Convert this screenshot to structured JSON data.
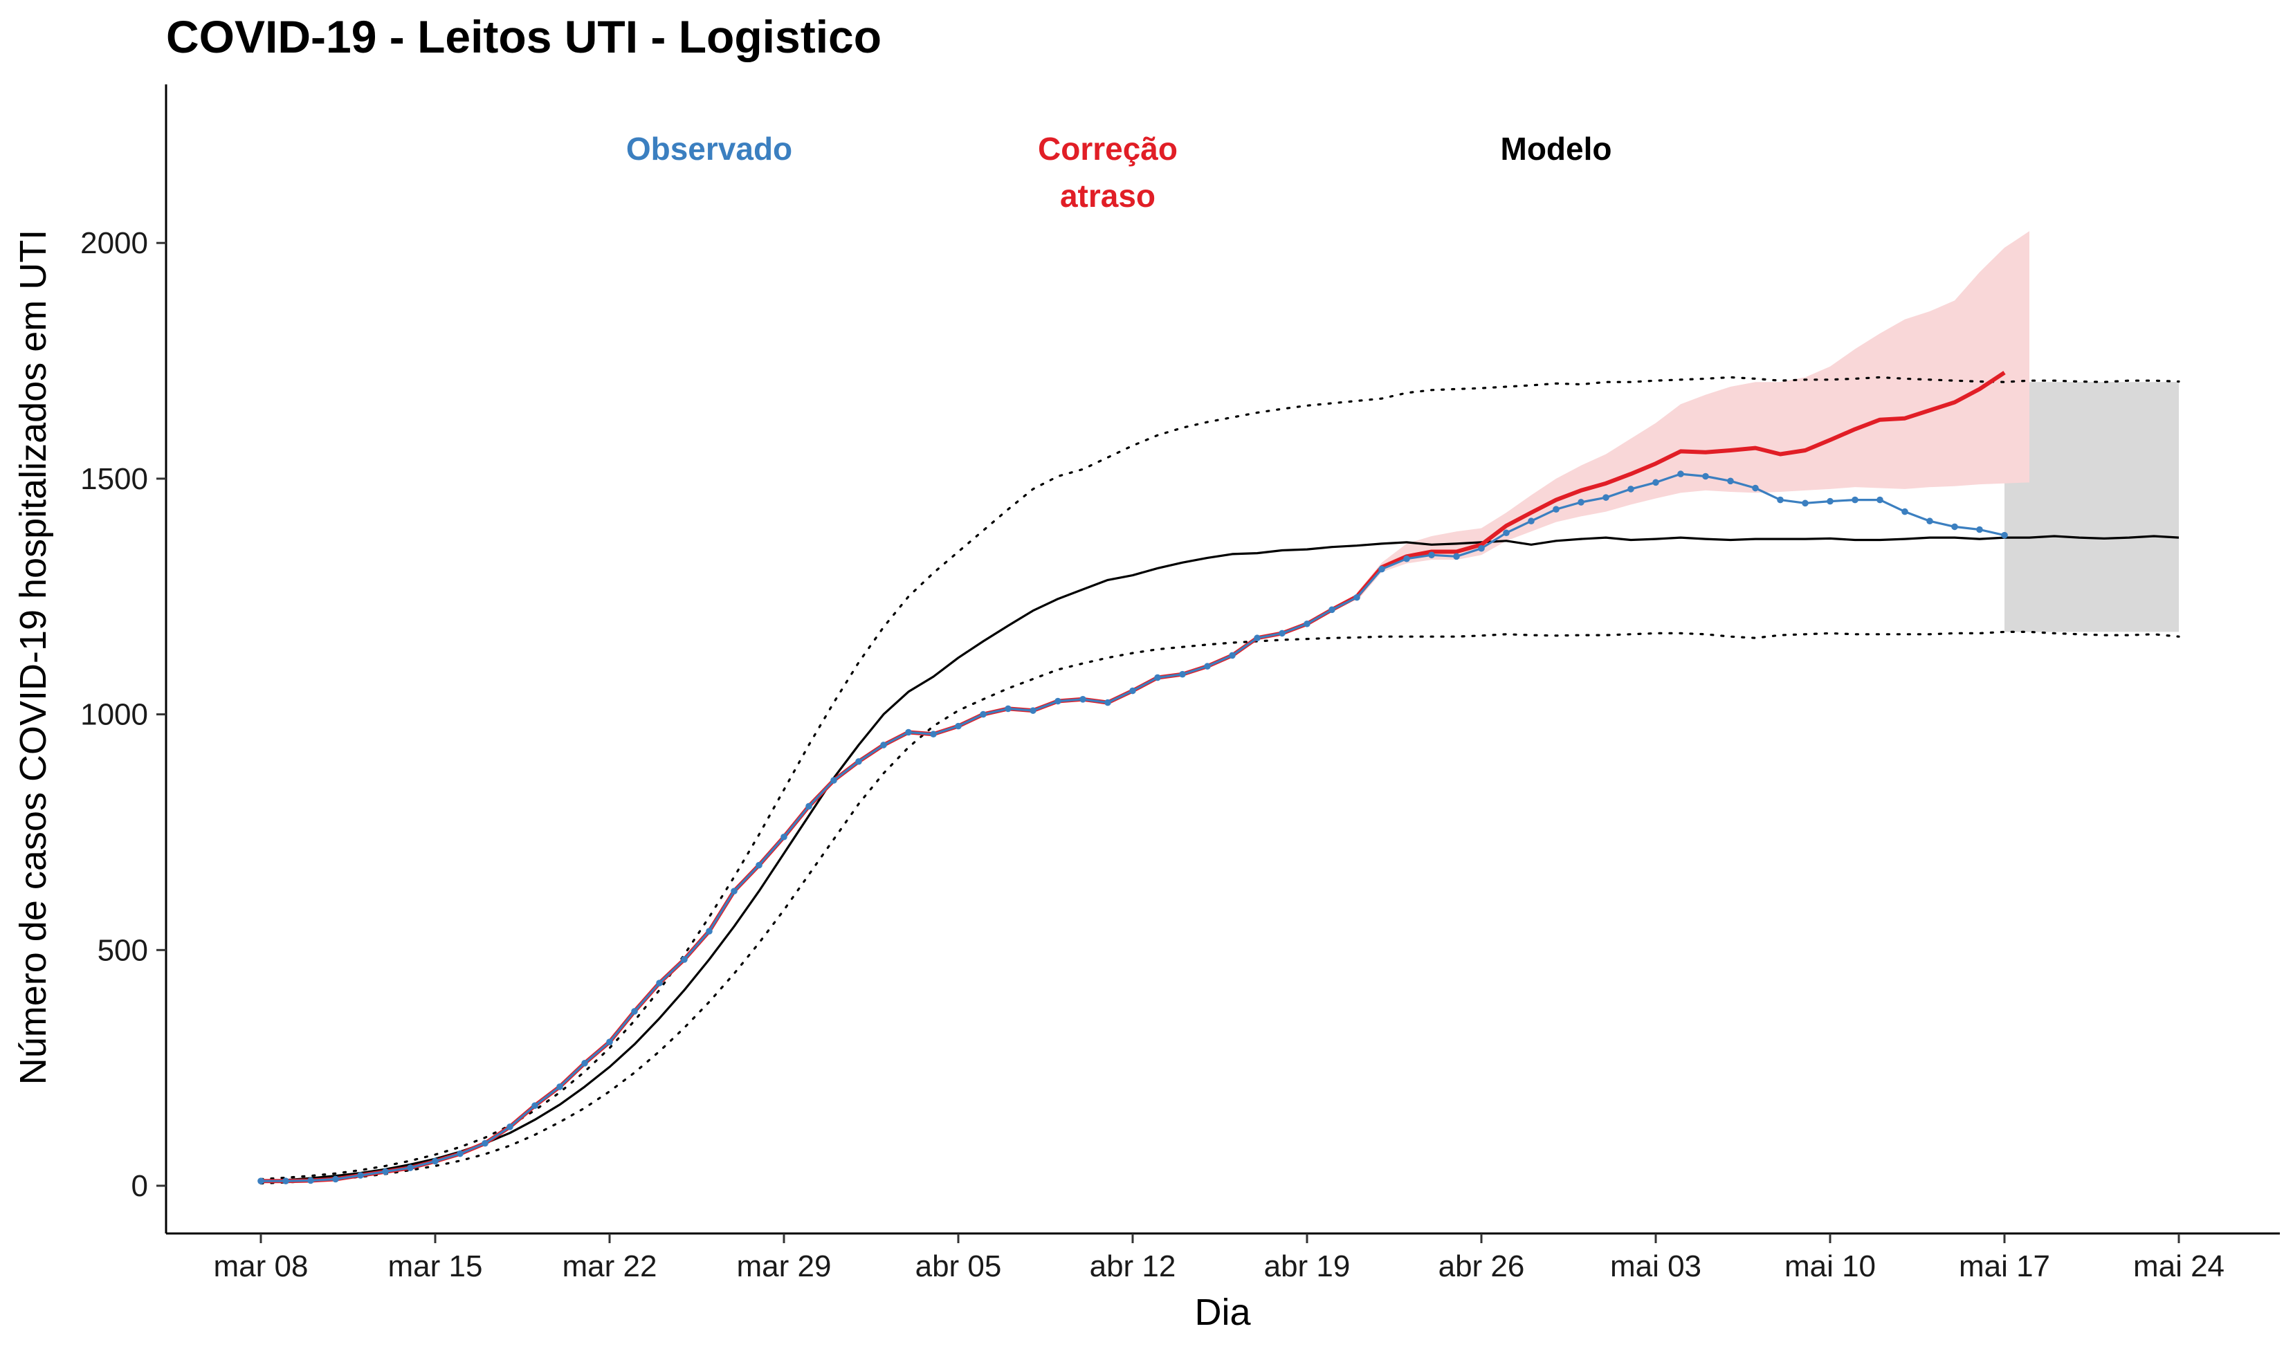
{
  "chart_data": {
    "type": "line",
    "title": "COVID-19 - Leitos UTI - Logistico",
    "xlabel": "Dia",
    "ylabel": "Número de casos COVID-19 hospitalizados em UTI",
    "x_ticks": [
      "mar 08",
      "mar 15",
      "mar 22",
      "mar 29",
      "abr 05",
      "abr 12",
      "abr 19",
      "abr 26",
      "mai 03",
      "mai 10",
      "mai 17",
      "mai 24"
    ],
    "y_ticks": [
      0,
      500,
      1000,
      1500,
      2000
    ],
    "xlim": [
      "2020-03-04",
      "2020-05-28"
    ],
    "ylim": [
      -100,
      2340
    ],
    "grid": false,
    "annotations": [
      {
        "name": "observed-label",
        "lines": [
          "Observado"
        ],
        "color": "#3B7FC0",
        "x": "2020-03-26",
        "y": 2200
      },
      {
        "name": "correction-label",
        "lines": [
          "Correção",
          "atraso"
        ],
        "color": "#E11E26",
        "x": "2020-04-11",
        "y": 2200
      },
      {
        "name": "model-label",
        "lines": [
          "Modelo"
        ],
        "color": "#000000",
        "x": "2020-04-29",
        "y": 2200
      }
    ],
    "x_dates": [
      "2020-03-08",
      "2020-03-09",
      "2020-03-10",
      "2020-03-11",
      "2020-03-12",
      "2020-03-13",
      "2020-03-14",
      "2020-03-15",
      "2020-03-16",
      "2020-03-17",
      "2020-03-18",
      "2020-03-19",
      "2020-03-20",
      "2020-03-21",
      "2020-03-22",
      "2020-03-23",
      "2020-03-24",
      "2020-03-25",
      "2020-03-26",
      "2020-03-27",
      "2020-03-28",
      "2020-03-29",
      "2020-03-30",
      "2020-03-31",
      "2020-04-01",
      "2020-04-02",
      "2020-04-03",
      "2020-04-04",
      "2020-04-05",
      "2020-04-06",
      "2020-04-07",
      "2020-04-08",
      "2020-04-09",
      "2020-04-10",
      "2020-04-11",
      "2020-04-12",
      "2020-04-13",
      "2020-04-14",
      "2020-04-15",
      "2020-04-16",
      "2020-04-17",
      "2020-04-18",
      "2020-04-19",
      "2020-04-20",
      "2020-04-21",
      "2020-04-22",
      "2020-04-23",
      "2020-04-24",
      "2020-04-25",
      "2020-04-26",
      "2020-04-27",
      "2020-04-28",
      "2020-04-29",
      "2020-04-30",
      "2020-05-01",
      "2020-05-02",
      "2020-05-03",
      "2020-05-04",
      "2020-05-05",
      "2020-05-06",
      "2020-05-07",
      "2020-05-08",
      "2020-05-09",
      "2020-05-10",
      "2020-05-11",
      "2020-05-12",
      "2020-05-13",
      "2020-05-14",
      "2020-05-15",
      "2020-05-16",
      "2020-05-17",
      "2020-05-18",
      "2020-05-19",
      "2020-05-20",
      "2020-05-21",
      "2020-05-22",
      "2020-05-23",
      "2020-05-24"
    ],
    "series": [
      {
        "name": "Observado",
        "role": "observed",
        "color": "#3B7FC0",
        "values": [
          10,
          10,
          11,
          14,
          22,
          30,
          38,
          52,
          68,
          90,
          125,
          170,
          210,
          260,
          305,
          370,
          430,
          480,
          540,
          625,
          680,
          740,
          805,
          860,
          900,
          935,
          962,
          958,
          975,
          1000,
          1012,
          1008,
          1028,
          1032,
          1025,
          1050,
          1078,
          1085,
          1102,
          1125,
          1162,
          1172,
          1192,
          1222,
          1248,
          1308,
          1330,
          1338,
          1335,
          1352,
          1385,
          1410,
          1435,
          1450,
          1460,
          1478,
          1492,
          1510,
          1505,
          1495,
          1480,
          1455,
          1448,
          1452,
          1455,
          1455,
          1430,
          1410,
          1398,
          1392,
          1380
        ]
      },
      {
        "name": "Correção atraso",
        "role": "correction",
        "color": "#E11E26",
        "values": [
          10,
          10,
          11,
          14,
          22,
          30,
          38,
          52,
          68,
          90,
          125,
          170,
          210,
          260,
          305,
          370,
          430,
          480,
          540,
          625,
          680,
          740,
          805,
          860,
          900,
          935,
          962,
          958,
          975,
          1000,
          1012,
          1008,
          1028,
          1032,
          1025,
          1050,
          1078,
          1085,
          1102,
          1125,
          1162,
          1172,
          1192,
          1222,
          1250,
          1312,
          1335,
          1345,
          1345,
          1360,
          1400,
          1428,
          1455,
          1475,
          1490,
          1510,
          1532,
          1558,
          1556,
          1560,
          1565,
          1552,
          1560,
          1582,
          1605,
          1625,
          1628,
          1645,
          1662,
          1690,
          1725
        ]
      },
      {
        "name": "Modelo",
        "role": "model",
        "color": "#000000",
        "values": [
          8,
          12,
          16,
          21,
          27,
          35,
          45,
          57,
          72,
          90,
          112,
          140,
          172,
          210,
          252,
          300,
          355,
          415,
          480,
          550,
          625,
          705,
          785,
          865,
          935,
          1000,
          1048,
          1080,
          1120,
          1155,
          1188,
          1220,
          1245,
          1265,
          1285,
          1295,
          1310,
          1322,
          1332,
          1340,
          1342,
          1348,
          1350,
          1355,
          1358,
          1362,
          1365,
          1360,
          1362,
          1365,
          1368,
          1360,
          1368,
          1372,
          1375,
          1370,
          1372,
          1375,
          1372,
          1370,
          1372,
          1372,
          1372,
          1373,
          1370,
          1370,
          1372,
          1375,
          1375,
          1372,
          1375,
          1375,
          1378,
          1375,
          1373,
          1375,
          1378,
          1375
        ]
      },
      {
        "name": "Modelo superior",
        "role": "model-upper",
        "color": "#000000",
        "values": [
          14,
          17,
          21,
          26,
          33,
          42,
          53,
          66,
          82,
          102,
          128,
          160,
          198,
          242,
          292,
          350,
          415,
          490,
          570,
          655,
          745,
          840,
          935,
          1025,
          1110,
          1185,
          1250,
          1300,
          1345,
          1390,
          1435,
          1478,
          1505,
          1520,
          1545,
          1570,
          1592,
          1608,
          1620,
          1630,
          1640,
          1648,
          1655,
          1660,
          1665,
          1670,
          1682,
          1688,
          1690,
          1692,
          1695,
          1698,
          1702,
          1700,
          1705,
          1705,
          1708,
          1710,
          1712,
          1715,
          1712,
          1708,
          1710,
          1710,
          1712,
          1715,
          1712,
          1710,
          1708,
          1706,
          1705,
          1708,
          1708,
          1706,
          1705,
          1708,
          1708,
          1706
        ]
      },
      {
        "name": "Modelo inferior",
        "role": "model-lower",
        "color": "#000000",
        "values": [
          5,
          7,
          10,
          14,
          19,
          25,
          33,
          42,
          53,
          67,
          85,
          108,
          135,
          165,
          200,
          240,
          285,
          335,
          390,
          450,
          515,
          585,
          660,
          735,
          810,
          875,
          930,
          975,
          1008,
          1032,
          1055,
          1075,
          1095,
          1108,
          1120,
          1130,
          1138,
          1143,
          1148,
          1152,
          1155,
          1158,
          1160,
          1162,
          1163,
          1165,
          1165,
          1165,
          1165,
          1167,
          1170,
          1168,
          1167,
          1168,
          1168,
          1170,
          1172,
          1172,
          1170,
          1165,
          1162,
          1168,
          1170,
          1172,
          1170,
          1170,
          1170,
          1170,
          1172,
          1172,
          1175,
          1175,
          1172,
          1170,
          1168,
          1168,
          1170,
          1165
        ]
      }
    ],
    "correction_band": {
      "color": "#F9D7D8",
      "start_index": 44,
      "upper": [
        1258,
        1322,
        1362,
        1378,
        1388,
        1395,
        1428,
        1465,
        1500,
        1528,
        1552,
        1585,
        1618,
        1658,
        1678,
        1695,
        1705,
        1705,
        1715,
        1738,
        1775,
        1808,
        1838,
        1855,
        1878,
        1938,
        1990,
        2025
      ],
      "lower": [
        1240,
        1302,
        1320,
        1328,
        1328,
        1338,
        1368,
        1388,
        1408,
        1420,
        1430,
        1445,
        1458,
        1470,
        1475,
        1472,
        1470,
        1472,
        1475,
        1478,
        1482,
        1480,
        1478,
        1482,
        1484,
        1488,
        1490,
        1492
      ]
    },
    "forecast_band": {
      "color": "#D9D9D9",
      "start": "2020-05-17",
      "end": "2020-05-24",
      "y_range": [
        1175,
        1705
      ]
    }
  }
}
